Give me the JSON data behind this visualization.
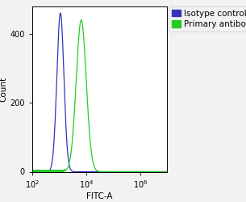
{
  "title": "",
  "xlabel": "FITC-A",
  "ylabel": "Count",
  "ylim": [
    0,
    480
  ],
  "yticks": [
    0,
    200,
    400
  ],
  "background_color": "#f2f2f2",
  "plot_bg_color": "#ffffff",
  "blue_color": "#3333bb",
  "green_color": "#22cc22",
  "blue_peak_log": 3.05,
  "blue_peak_count": 460,
  "blue_sigma_log": 0.13,
  "green_peak_log": 3.82,
  "green_peak_count": 440,
  "green_sigma_log": 0.185,
  "legend_labels": [
    "Isotype control",
    "Primary antibody"
  ],
  "legend_colors": [
    "#3333bb",
    "#22cc22"
  ],
  "font_size": 7.5,
  "legend_font_size": 7.5,
  "tick_label_size": 7,
  "linewidth": 0.9
}
